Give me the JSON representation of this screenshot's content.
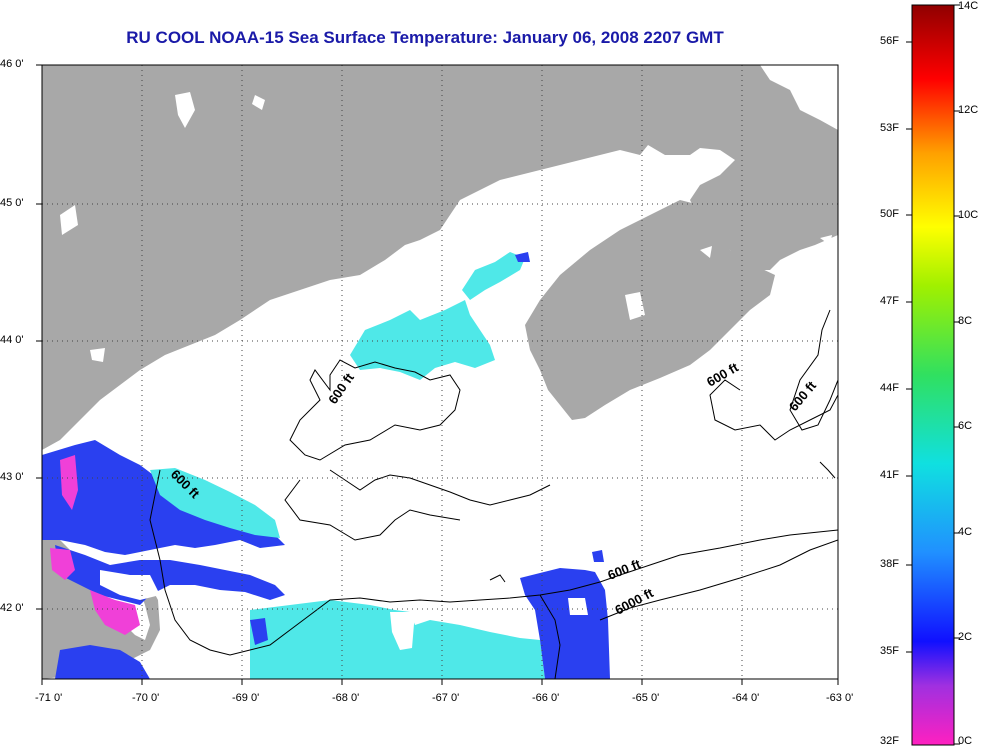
{
  "title": "RU COOL  NOAA-15  Sea Surface Temperature:  January 06, 2008 2207 GMT",
  "x_ticks": [
    "-71 0'",
    "-70 0'",
    "-69 0'",
    "-68 0'",
    "-67 0'",
    "-66 0'",
    "-65 0'",
    "-64 0'",
    "-63 0'"
  ],
  "y_ticks": [
    "46 0'",
    "45 0'",
    "44 0'",
    "43 0'",
    "42 0'"
  ],
  "contour_labels": [
    {
      "text": "600 ft"
    },
    {
      "text": "600 ft"
    },
    {
      "text": "600 ft"
    },
    {
      "text": "600 ft"
    },
    {
      "text": "600 ft"
    },
    {
      "text": "6000 ft"
    }
  ],
  "colorbar": {
    "fahrenheit": [
      "56F",
      "53F",
      "50F",
      "47F",
      "44F",
      "41F",
      "38F",
      "35F",
      "32F"
    ],
    "celsius": [
      "14C",
      "12C",
      "10C",
      "8C",
      "6C",
      "4C",
      "2C",
      "0C"
    ]
  },
  "colors": {
    "land": "#a8a8a8",
    "title": "#1a1aa8",
    "sst_cyan": "#4fe8e8",
    "sst_blue": "#2a40f0",
    "sst_magenta": "#f040d8"
  }
}
